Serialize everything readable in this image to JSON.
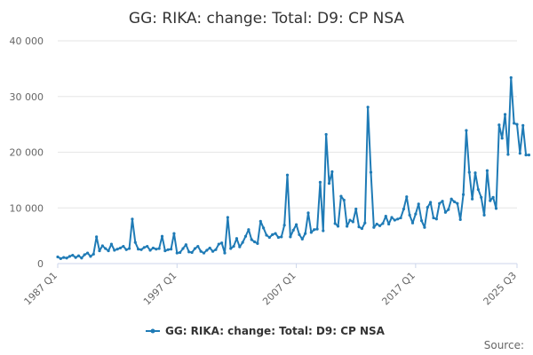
{
  "source_label": "Source:",
  "chart_data": {
    "type": "line",
    "title": "GG: RIKA: change: Total: D9: CP NSA",
    "xlabel": "",
    "ylabel": "",
    "x_start": "1987 Q1",
    "x_end": "2025 Q3",
    "x_tick_labels": [
      "1987 Q1",
      "1997 Q1",
      "2007 Q1",
      "2017 Q1",
      "2025 Q3"
    ],
    "y_tick_labels": [
      "0",
      "10 000",
      "20 000",
      "30 000",
      "40 000"
    ],
    "ylim": [
      0,
      40000
    ],
    "grid": true,
    "legend_position": "bottom",
    "color": "#1f7bb6",
    "series": [
      {
        "name": "GG: RIKA: change: Total: D9: CP NSA",
        "values": [
          1200,
          900,
          1100,
          1000,
          1300,
          1500,
          1100,
          1400,
          1000,
          1600,
          1900,
          1300,
          1700,
          4800,
          2300,
          3200,
          2700,
          2300,
          3500,
          2400,
          2600,
          2800,
          3100,
          2500,
          2700,
          8000,
          3800,
          2600,
          2500,
          2900,
          3100,
          2400,
          2800,
          2600,
          2700,
          4900,
          2300,
          2500,
          2600,
          5400,
          1900,
          2000,
          2700,
          3400,
          2100,
          2000,
          2700,
          3100,
          2200,
          1900,
          2400,
          2800,
          2200,
          2500,
          3500,
          3700,
          1900,
          8300,
          2700,
          3100,
          4500,
          3000,
          3800,
          4900,
          6100,
          4300,
          3900,
          3600,
          7600,
          6400,
          5100,
          4700,
          5200,
          5400,
          4700,
          4800,
          6900,
          15900,
          4800,
          6000,
          7000,
          5200,
          4400,
          5400,
          9100,
          5600,
          6100,
          6200,
          14600,
          5900,
          23200,
          14400,
          16500,
          7200,
          6700,
          12100,
          11400,
          6700,
          7800,
          7500,
          9800,
          6600,
          6300,
          7300,
          28100,
          16400,
          6500,
          7100,
          6800,
          7200,
          8500,
          7100,
          8300,
          7800,
          8000,
          8200,
          9800,
          12000,
          8700,
          7300,
          8900,
          10700,
          7700,
          6500,
          10100,
          11000,
          8200,
          8000,
          10800,
          11200,
          9200,
          9700,
          11600,
          11100,
          10800,
          7900,
          12400,
          23900,
          16400,
          11600,
          16300,
          13300,
          11900,
          8700,
          16700,
          11300,
          11900,
          9900,
          24900,
          22500,
          26800,
          19600,
          33400,
          25200,
          25000,
          19800,
          24800,
          19500,
          19500
        ]
      }
    ]
  }
}
